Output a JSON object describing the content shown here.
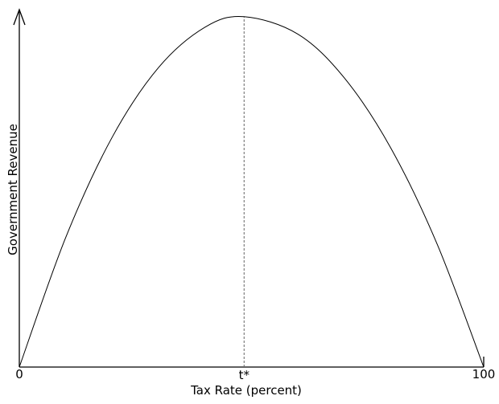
{
  "chart_data": {
    "type": "line",
    "title": "",
    "xlabel": "Tax Rate (percent)",
    "ylabel": "Government Revenue",
    "xlim": [
      0,
      100
    ],
    "ylim": [
      0,
      1.02
    ],
    "x_tick_labels": [
      "0",
      "t*",
      "100"
    ],
    "x_ticks": [
      0,
      48.4,
      100
    ],
    "grid": false,
    "annotations": [
      {
        "type": "vertical-dashed-line",
        "x": 48.4,
        "label": "t*"
      }
    ],
    "series": [
      {
        "x": [
          0,
          10,
          20,
          30,
          40,
          48.4,
          60,
          70,
          80,
          90,
          100
        ],
        "y": [
          0,
          0.37,
          0.656,
          0.855,
          0.97,
          1.0,
          0.95,
          0.825,
          0.625,
          0.35,
          0
        ],
        "color": "#000000"
      }
    ]
  }
}
